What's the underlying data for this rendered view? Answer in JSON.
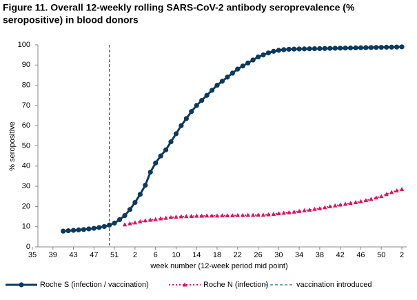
{
  "chart_data": {
    "type": "line",
    "title": "Figure 11. Overall 12-weekly rolling SARS-CoV-2 antibody seroprevalence (% seropositive) in blood donors",
    "title_lines": [
      "Figure 11. Overall 12-weekly rolling SARS-CoV-2 antibody seroprevalence (%",
      "seropositive) in blood donors"
    ],
    "x_label": "week number  (12-week period mid point)",
    "y_label": "% seropositive",
    "categories": [
      "35",
      null,
      null,
      null,
      "39",
      null,
      null,
      null,
      "43",
      null,
      null,
      null,
      "47",
      null,
      null,
      null,
      "51",
      null,
      null,
      null,
      "2",
      null,
      null,
      null,
      "6",
      null,
      null,
      null,
      "10",
      null,
      null,
      null,
      "14",
      null,
      null,
      null,
      "18",
      null,
      null,
      null,
      "22",
      null,
      null,
      null,
      "26",
      null,
      null,
      null,
      "30",
      null,
      null,
      null,
      "34",
      null,
      null,
      null,
      "38",
      null,
      null,
      null,
      "42",
      null,
      null,
      null,
      "46",
      null,
      null,
      null,
      "50",
      null,
      null,
      null,
      "2"
    ],
    "series": [
      {
        "name": "Roche S (infection / vaccination)",
        "color": "#0d3a5c",
        "marker": "circle",
        "values": [
          null,
          null,
          null,
          null,
          null,
          null,
          7.8,
          8,
          8.2,
          8.4,
          8.6,
          8.9,
          9.2,
          9.6,
          10.1,
          10.8,
          11.8,
          13.5,
          15.5,
          18.5,
          22,
          26,
          30.5,
          37,
          41.5,
          45,
          48,
          52,
          56,
          60,
          63.5,
          67,
          70,
          72.5,
          75,
          77.5,
          80,
          82,
          84,
          86,
          88,
          89.5,
          91,
          92.5,
          94,
          95,
          96,
          96.8,
          97.3,
          97.6,
          97.8,
          97.9,
          97.95,
          98,
          98.05,
          98.1,
          98.15,
          98.2,
          98.25,
          98.3,
          98.35,
          98.4,
          98.45,
          98.5,
          98.55,
          98.6,
          98.65,
          98.7,
          98.75,
          98.8,
          98.85,
          98.9,
          99
        ]
      },
      {
        "name": "Roche N (infection)",
        "color": "#e0115f",
        "marker": "triangle",
        "values": [
          null,
          null,
          null,
          null,
          null,
          null,
          null,
          null,
          null,
          null,
          null,
          null,
          null,
          null,
          null,
          null,
          null,
          null,
          11,
          11.5,
          12,
          12.5,
          13,
          13.3,
          13.6,
          14,
          14.3,
          14.6,
          14.8,
          15,
          15.1,
          15.2,
          15.3,
          15.3,
          15.4,
          15.4,
          15.4,
          15.5,
          15.5,
          15.5,
          15.6,
          15.6,
          15.7,
          15.7,
          15.8,
          15.8,
          16,
          16.2,
          16.5,
          16.8,
          17,
          17.3,
          17.6,
          18,
          18.3,
          18.7,
          19,
          19.5,
          20,
          20.4,
          20.8,
          21.2,
          21.6,
          22,
          22.5,
          23,
          23.6,
          24.3,
          25,
          26,
          27,
          27.8,
          28.5
        ]
      }
    ],
    "vertical_line": {
      "name": "vaccination introduced",
      "index": 15,
      "color": "#1f6e8c"
    },
    "ylim": [
      0,
      100
    ],
    "yticks": [
      0,
      10,
      20,
      30,
      40,
      50,
      60,
      70,
      80,
      90,
      100
    ]
  }
}
